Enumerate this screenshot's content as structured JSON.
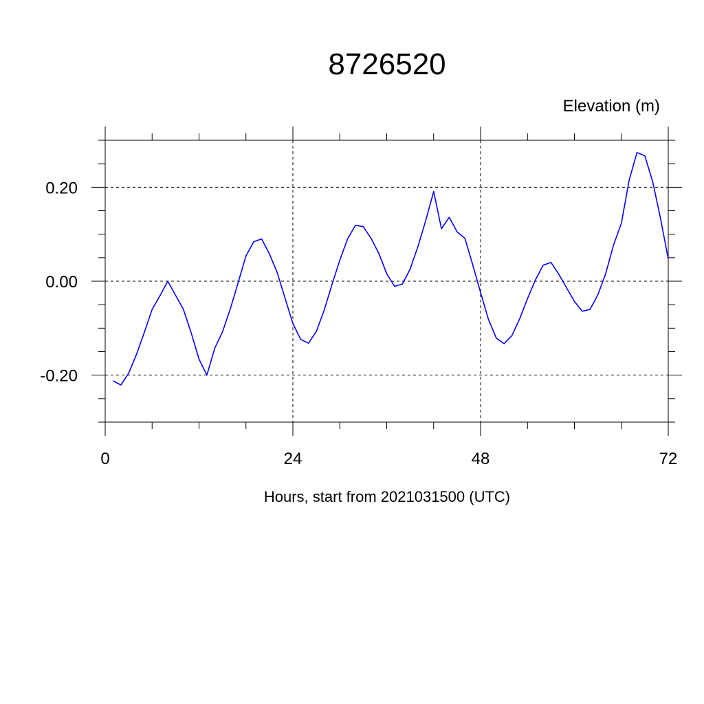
{
  "chart_data": {
    "type": "line",
    "title": "8726520",
    "ylabel": "Elevation (m)",
    "xlabel": "Hours, start from 2021031500 (UTC)",
    "xlim": [
      0,
      72
    ],
    "ylim": [
      -0.3,
      0.3
    ],
    "x_ticks": [
      0,
      24,
      48,
      72
    ],
    "x_tick_labels": [
      "0",
      "24",
      "48",
      "72"
    ],
    "y_ticks": [
      0.2,
      0.0,
      -0.2
    ],
    "y_tick_labels": [
      "0.20",
      "0.00",
      "-0.20"
    ],
    "grid": "dashed at major ticks",
    "line_color": "#0000ff",
    "series": [
      {
        "x": [
          1,
          2,
          3,
          4,
          5,
          6,
          7,
          8,
          9,
          10,
          11,
          12,
          13,
          14,
          15,
          16,
          17,
          18,
          19,
          20,
          21,
          22,
          23,
          24,
          25,
          26,
          27,
          28,
          29,
          30,
          31,
          32,
          33,
          34,
          35,
          36,
          37,
          38,
          39,
          40,
          41,
          42,
          43,
          44,
          45,
          46,
          47,
          48,
          49,
          50,
          51,
          52,
          53,
          54,
          55,
          56,
          57,
          58,
          59,
          60,
          61,
          62,
          63,
          64,
          65,
          66,
          67,
          68,
          69,
          70,
          71,
          72
        ],
        "values": [
          -0.212,
          -0.221,
          -0.196,
          -0.156,
          -0.109,
          -0.06,
          -0.031,
          0.0,
          -0.03,
          -0.06,
          -0.11,
          -0.166,
          -0.2,
          -0.143,
          -0.108,
          -0.059,
          -0.003,
          0.054,
          0.084,
          0.09,
          0.058,
          0.018,
          -0.036,
          -0.09,
          -0.124,
          -0.132,
          -0.107,
          -0.062,
          -0.007,
          0.045,
          0.09,
          0.119,
          0.116,
          0.091,
          0.059,
          0.016,
          -0.011,
          -0.006,
          0.026,
          0.074,
          0.13,
          0.191,
          0.112,
          0.136,
          0.105,
          0.091,
          0.035,
          -0.024,
          -0.081,
          -0.121,
          -0.133,
          -0.116,
          -0.08,
          -0.037,
          0.002,
          0.034,
          0.04,
          0.015,
          -0.014,
          -0.043,
          -0.064,
          -0.06,
          -0.029,
          0.016,
          0.077,
          0.123,
          0.215,
          0.274,
          0.267,
          0.212,
          0.135,
          0.047
        ]
      }
    ]
  }
}
